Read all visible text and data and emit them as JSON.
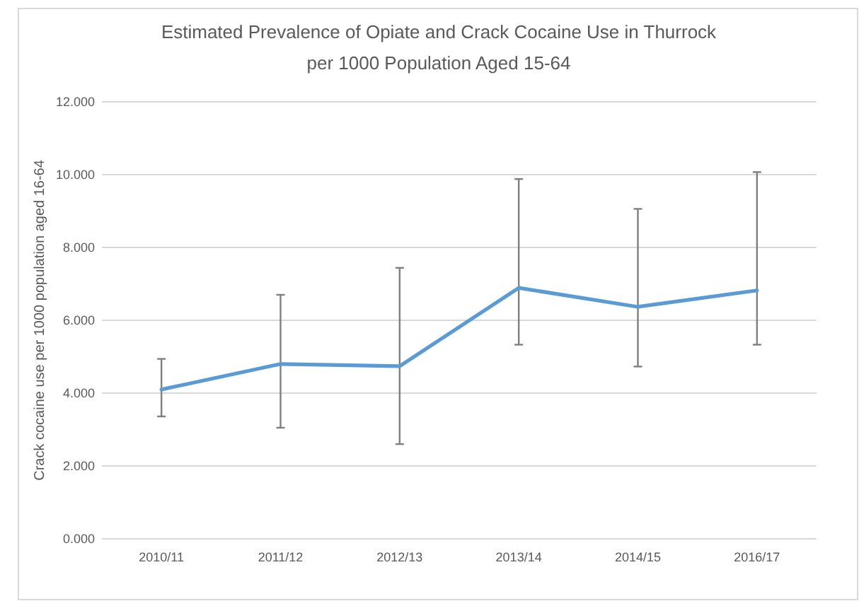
{
  "chart_data": {
    "type": "line",
    "title": "Estimated Prevalence of Opiate and Crack Cocaine Use in Thurrock per 1000 Population Aged 15-64",
    "ylabel": "Crack cocaine use per 1000 population aged 16-64",
    "categories": [
      "2010/11",
      "2011/12",
      "2012/13",
      "2013/14",
      "2014/15",
      "2016/17"
    ],
    "series": [
      {
        "color": "#5b9bd5",
        "values": [
          4.1,
          4.8,
          4.74,
          6.89,
          6.37,
          6.82
        ],
        "errors": [
          [
            3.36,
            4.94
          ],
          [
            3.05,
            6.7
          ],
          [
            2.6,
            7.44
          ],
          [
            5.33,
            9.88
          ],
          [
            4.73,
            9.06
          ],
          [
            5.33,
            10.07
          ]
        ]
      }
    ],
    "ylim": [
      0,
      12
    ],
    "yticks": [
      {
        "value": 0,
        "label": "0.000"
      },
      {
        "value": 2,
        "label": "2.000"
      },
      {
        "value": 4,
        "label": "4.000"
      },
      {
        "value": 6,
        "label": "6.000"
      },
      {
        "value": 8,
        "label": "8.000"
      },
      {
        "value": 10,
        "label": "10.000"
      },
      {
        "value": 12,
        "label": "12.000"
      }
    ],
    "grid": "y",
    "marker": "none",
    "line_style": "solid"
  }
}
